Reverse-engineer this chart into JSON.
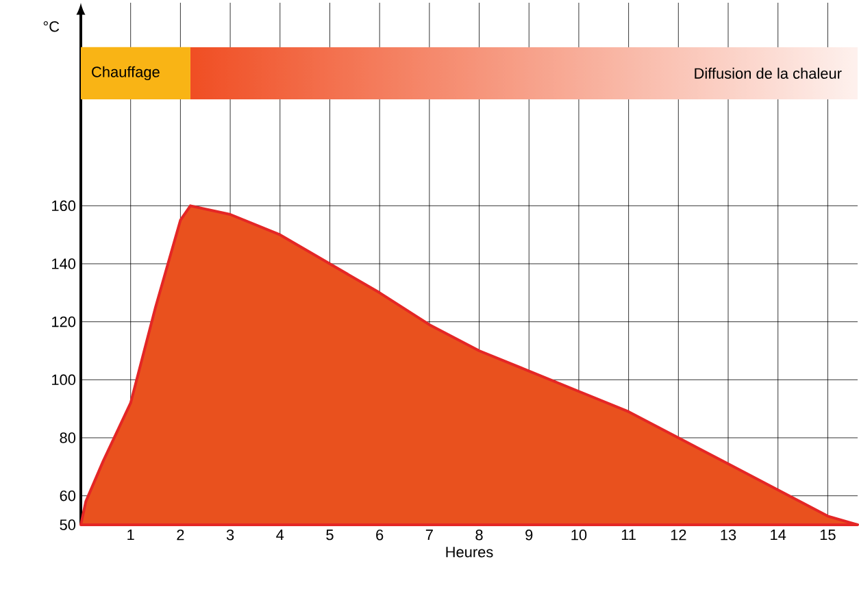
{
  "chart_data": {
    "type": "area",
    "xlabel": "Heures",
    "ylabel": "°C",
    "x": [
      0,
      0.1,
      0.45,
      1,
      1.5,
      2,
      2.2,
      3,
      4,
      5,
      6,
      7,
      8,
      9,
      10,
      11,
      12,
      13,
      14,
      15,
      15.6
    ],
    "series": [
      {
        "color": "#e42625",
        "values": [
          50,
          58,
          72,
          92,
          125,
          155,
          160,
          157,
          150,
          140,
          130,
          119,
          110,
          103,
          96,
          89,
          80,
          71,
          62,
          53,
          50
        ]
      }
    ],
    "xlim": [
      0,
      15.6
    ],
    "ylim": [
      50,
      230
    ],
    "xticks": [
      1,
      2,
      3,
      4,
      5,
      6,
      7,
      8,
      9,
      10,
      11,
      12,
      13,
      14,
      15
    ],
    "yticks": [
      50,
      60,
      80,
      100,
      120,
      140,
      160
    ],
    "grid": true,
    "bands": [
      {
        "axis": "x",
        "from": 0,
        "to": 2.2,
        "label": "Chauffage",
        "color": "#f9b415"
      },
      {
        "axis": "x",
        "from": 2.2,
        "to": 15.6,
        "label": "Diffusion de la chaleur",
        "color": "#f04e23"
      }
    ]
  }
}
